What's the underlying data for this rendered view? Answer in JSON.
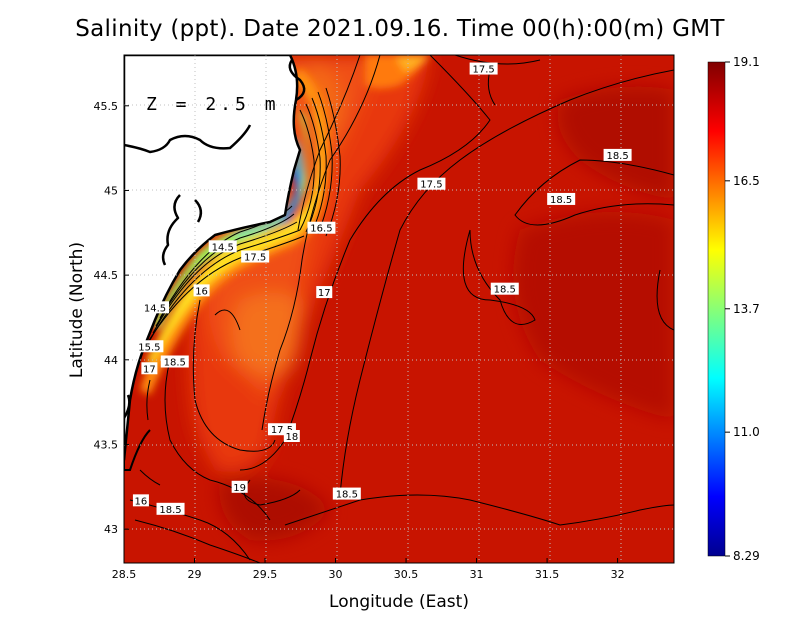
{
  "title": "Salinity (ppt). Date 2021.09.16. Time 00(h):00(m) GMT",
  "depth_label": "Z = 2.5 m",
  "colors": {
    "land": "#ffffff",
    "coast": "#000000",
    "deep_sea": "#c81400",
    "shelf": "#ea3a0a"
  },
  "chart_data": {
    "type": "heatmap",
    "title": "Salinity (ppt). Date 2021.09.16. Time 00(h):00(m) GMT",
    "xlabel": "Longitude (East)",
    "ylabel": "Latitude (North)",
    "xlim": [
      28.5,
      32.4
    ],
    "ylim": [
      42.8,
      45.8
    ],
    "x_ticks": [
      "28.5",
      "29",
      "29.5",
      "30",
      "30.5",
      "31",
      "31.5",
      "32"
    ],
    "y_ticks": [
      "43",
      "43.5",
      "44",
      "44.5",
      "45",
      "45.5"
    ],
    "grid": true,
    "colorbar": {
      "min": 8.29,
      "max": 19.1,
      "tick_labels": [
        "19.1",
        "16.5",
        "13.7",
        "11.0",
        "8.29"
      ],
      "tick_values": [
        19.1,
        16.5,
        13.7,
        11.0,
        8.29
      ],
      "colormap": "jet"
    },
    "contour_labels": [
      {
        "text": "17.5",
        "lon": 31.05,
        "lat": 45.72
      },
      {
        "text": "18.5",
        "lon": 32.0,
        "lat": 45.21
      },
      {
        "text": "17.5",
        "lon": 30.68,
        "lat": 45.04
      },
      {
        "text": "18.5",
        "lon": 31.6,
        "lat": 44.95
      },
      {
        "text": "16.5",
        "lon": 29.9,
        "lat": 44.78
      },
      {
        "text": "14.5",
        "lon": 29.2,
        "lat": 44.67
      },
      {
        "text": "17.5",
        "lon": 29.43,
        "lat": 44.61
      },
      {
        "text": "17",
        "lon": 29.92,
        "lat": 44.4
      },
      {
        "text": "18.5",
        "lon": 31.2,
        "lat": 44.42
      },
      {
        "text": "16",
        "lon": 29.05,
        "lat": 44.41
      },
      {
        "text": "14.5",
        "lon": 28.72,
        "lat": 44.31
      },
      {
        "text": "15.5",
        "lon": 28.68,
        "lat": 44.08
      },
      {
        "text": "18.5",
        "lon": 28.86,
        "lat": 43.99
      },
      {
        "text": "17",
        "lon": 28.68,
        "lat": 43.95
      },
      {
        "text": "17.5",
        "lon": 29.62,
        "lat": 43.59
      },
      {
        "text": "18",
        "lon": 29.69,
        "lat": 43.55
      },
      {
        "text": "19",
        "lon": 29.32,
        "lat": 43.25
      },
      {
        "text": "18.5",
        "lon": 30.08,
        "lat": 43.21
      },
      {
        "text": "16",
        "lon": 28.62,
        "lat": 43.17
      },
      {
        "text": "18.5",
        "lon": 28.83,
        "lat": 43.12
      }
    ]
  }
}
